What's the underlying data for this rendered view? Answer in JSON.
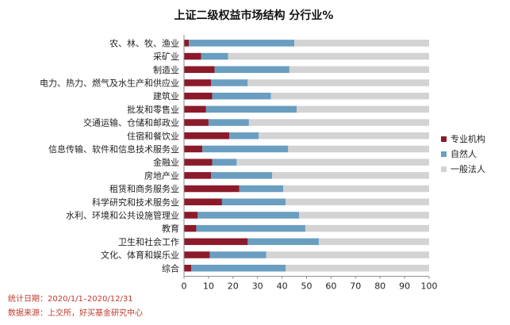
{
  "chart_data": {
    "type": "bar",
    "orientation": "horizontal",
    "stacked": true,
    "title": "上证二级权益市场结构  分行业%",
    "categories": [
      "农、林、牧、渔业",
      "采矿业",
      "制造业",
      "电力、热力、燃气及水生产和供应业",
      "建筑业",
      "批发和零售业",
      "交通运输、仓储和邮政业",
      "住宿和餐饮业",
      "信息传输、软件和信息技术服务业",
      "金融业",
      "房地产业",
      "租赁和商务服务业",
      "科学研究和技术服务业",
      "水利、环境和公共设施管理业",
      "教育",
      "卫生和社会工作",
      "文化、体育和娱乐业",
      "综合"
    ],
    "series": [
      {
        "name": "专业机构",
        "color": "#8b1a2b",
        "values": [
          2,
          7,
          12.5,
          11,
          11.5,
          9,
          10,
          18.5,
          7.5,
          11.5,
          11,
          22.5,
          15.5,
          5.5,
          5,
          26,
          10.5,
          3
        ]
      },
      {
        "name": "自然人",
        "color": "#6a9ec0",
        "values": [
          43,
          11,
          30.5,
          15,
          24,
          37,
          16.5,
          12,
          35,
          10,
          25,
          18,
          26,
          41.5,
          44.5,
          29,
          23,
          38.5
        ]
      },
      {
        "name": "一般法人",
        "color": "#d3d3d3",
        "values": [
          55,
          82,
          57,
          74,
          64.5,
          54,
          73.5,
          69.5,
          57.5,
          78.5,
          64,
          59.5,
          58.5,
          53,
          50.5,
          45,
          66.5,
          58.5
        ]
      }
    ],
    "xlim": [
      0,
      100
    ],
    "xticks": [
      0,
      10,
      20,
      30,
      40,
      50,
      60,
      70,
      80,
      90,
      100
    ],
    "legend_position": "right",
    "grid": false
  },
  "notes": {
    "period": "统计日期：2020/1/1–2020/12/31",
    "source": "数据来源：上交所，好买基金研究中心"
  }
}
